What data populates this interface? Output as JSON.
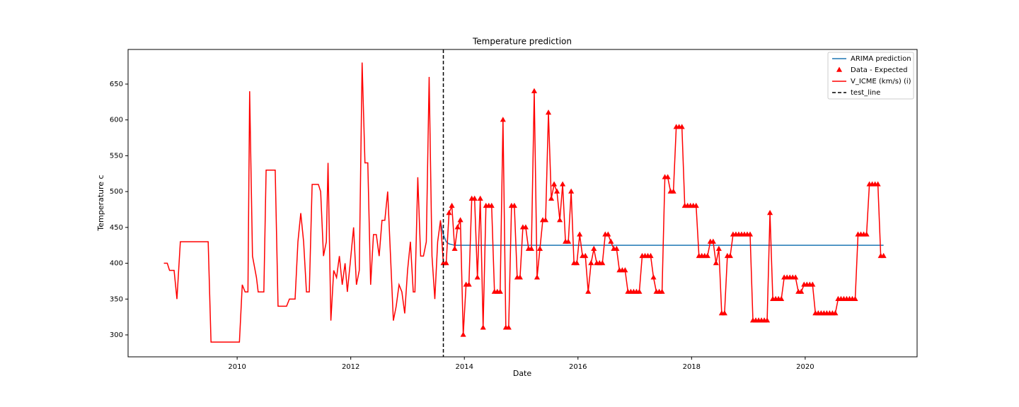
{
  "chart_data": {
    "type": "line",
    "title": "Temperature prediction",
    "x_label": "Date",
    "y_label": "Temperature c",
    "xlim": [
      2008.08,
      2021.97
    ],
    "ylim": [
      269.4,
      698.3
    ],
    "xticks": [
      2010,
      2012,
      2014,
      2016,
      2018,
      2020
    ],
    "yticks": [
      300,
      350,
      400,
      450,
      500,
      550,
      600,
      650
    ],
    "legend": "upper right",
    "series": [
      {
        "name": "ARIMA prediction",
        "kind": "line",
        "color": "#1f77b4",
        "x": [
          2013.58,
          2013.63,
          2013.68,
          2013.73,
          2013.78,
          2013.83,
          2021.38
        ],
        "values": [
          458,
          440,
          430,
          427,
          426,
          425,
          425
        ]
      },
      {
        "name": "Data - Expected",
        "kind": "scatter",
        "color": "#ff0000",
        "x": [
          2013.63,
          2013.68,
          2013.73,
          2013.78,
          2013.83,
          2013.88,
          2013.93,
          2013.98,
          2014.03,
          2014.08,
          2014.13,
          2014.18,
          2014.23,
          2014.28,
          2014.33,
          2014.38,
          2014.43,
          2014.48,
          2014.53,
          2014.58,
          2014.63,
          2014.68,
          2014.73,
          2014.78,
          2014.83,
          2014.88,
          2014.93,
          2014.98,
          2015.03,
          2015.08,
          2015.13,
          2015.18,
          2015.23,
          2015.28,
          2015.33,
          2015.38,
          2015.43,
          2015.48,
          2015.53,
          2015.58,
          2015.63,
          2015.68,
          2015.73,
          2015.78,
          2015.83,
          2015.88,
          2015.93,
          2015.98,
          2016.03,
          2016.08,
          2016.13,
          2016.18,
          2016.23,
          2016.28,
          2016.33,
          2016.38,
          2016.43,
          2016.48,
          2016.53,
          2016.58,
          2016.63,
          2016.68,
          2016.73,
          2016.78,
          2016.83,
          2016.88,
          2016.93,
          2016.98,
          2017.03,
          2017.08,
          2017.13,
          2017.18,
          2017.23,
          2017.28,
          2017.33,
          2017.38,
          2017.43,
          2017.48,
          2017.53,
          2017.58,
          2017.63,
          2017.68,
          2017.73,
          2017.78,
          2017.83,
          2017.88,
          2017.93,
          2017.98,
          2018.03,
          2018.08,
          2018.13,
          2018.18,
          2018.23,
          2018.28,
          2018.33,
          2018.38,
          2018.43,
          2018.48,
          2018.53,
          2018.58,
          2018.63,
          2018.68,
          2018.73,
          2018.78,
          2018.83,
          2018.88,
          2018.93,
          2018.98,
          2019.03,
          2019.08,
          2019.13,
          2019.18,
          2019.23,
          2019.28,
          2019.33,
          2019.38,
          2019.43,
          2019.48,
          2019.53,
          2019.58,
          2019.63,
          2019.68,
          2019.73,
          2019.78,
          2019.83,
          2019.88,
          2019.93,
          2019.98,
          2020.03,
          2020.08,
          2020.13,
          2020.18,
          2020.23,
          2020.28,
          2020.33,
          2020.38,
          2020.43,
          2020.48,
          2020.53,
          2020.58,
          2020.63,
          2020.68,
          2020.73,
          2020.78,
          2020.83,
          2020.88,
          2020.93,
          2020.98,
          2021.03,
          2021.08,
          2021.13,
          2021.18,
          2021.23,
          2021.28,
          2021.33,
          2021.38
        ],
        "values": [
          400,
          400,
          470,
          480,
          420,
          450,
          460,
          300,
          370,
          370,
          490,
          490,
          380,
          490,
          310,
          480,
          480,
          480,
          360,
          360,
          360,
          600,
          310,
          310,
          480,
          480,
          380,
          380,
          450,
          450,
          420,
          420,
          640,
          380,
          420,
          460,
          460,
          610,
          490,
          510,
          500,
          460,
          510,
          430,
          430,
          500,
          400,
          400,
          440,
          410,
          410,
          360,
          400,
          420,
          400,
          400,
          400,
          440,
          440,
          430,
          420,
          420,
          390,
          390,
          390,
          360,
          360,
          360,
          360,
          360,
          410,
          410,
          410,
          410,
          380,
          360,
          360,
          360,
          520,
          520,
          500,
          500,
          590,
          590,
          590,
          480,
          480,
          480,
          480,
          480,
          410,
          410,
          410,
          410,
          430,
          430,
          400,
          420,
          330,
          330,
          410,
          410,
          440,
          440,
          440,
          440,
          440,
          440,
          440,
          320,
          320,
          320,
          320,
          320,
          320,
          470,
          350,
          350,
          350,
          350,
          380,
          380,
          380,
          380,
          380,
          360,
          360,
          370,
          370,
          370,
          370,
          330,
          330,
          330,
          330,
          330,
          330,
          330,
          330,
          350,
          350,
          350,
          350,
          350,
          350,
          350,
          440,
          440,
          440,
          440,
          510,
          510,
          510,
          510,
          410,
          410
        ]
      },
      {
        "name": "V_ICME (km/s) (i)",
        "kind": "line",
        "color": "#ff0000",
        "x": [
          2008.71,
          2008.77,
          2008.81,
          2008.89,
          2008.94,
          2009.0,
          2009.49,
          2009.54,
          2010.04,
          2010.09,
          2010.14,
          2010.19,
          2010.22,
          2010.27,
          2010.34,
          2010.37,
          2010.47,
          2010.51,
          2010.67,
          2010.72,
          2010.87,
          2010.92,
          2011.02,
          2011.07,
          2011.12,
          2011.17,
          2011.22,
          2011.27,
          2011.32,
          2011.43,
          2011.47,
          2011.52,
          2011.57,
          2011.6,
          2011.65,
          2011.7,
          2011.75,
          2011.8,
          2011.85,
          2011.9,
          2011.94,
          2011.99,
          2012.05,
          2012.1,
          2012.15,
          2012.2,
          2012.25,
          2012.3,
          2012.35,
          2012.4,
          2012.45,
          2012.5,
          2012.55,
          2012.6,
          2012.65,
          2012.7,
          2012.75,
          2012.8,
          2012.85,
          2012.9,
          2012.95,
          2013.0,
          2013.05,
          2013.1,
          2013.13,
          2013.18,
          2013.23,
          2013.28,
          2013.33,
          2013.38,
          2013.43,
          2013.48,
          2013.53,
          2013.58,
          2013.63,
          2013.68,
          2013.73,
          2013.78,
          2013.83,
          2013.88,
          2013.93,
          2013.98,
          2014.03,
          2014.08,
          2014.13,
          2014.18,
          2014.23,
          2014.28,
          2014.33,
          2014.38,
          2014.43,
          2014.48,
          2014.53,
          2014.58,
          2014.63,
          2014.68,
          2014.73,
          2014.78,
          2014.83,
          2014.88,
          2014.93,
          2014.98,
          2015.03,
          2015.08,
          2015.13,
          2015.18,
          2015.23,
          2015.28,
          2015.33,
          2015.38,
          2015.43,
          2015.48,
          2015.53,
          2015.58,
          2015.63,
          2015.68,
          2015.73,
          2015.78,
          2015.83,
          2015.88,
          2015.93,
          2015.98,
          2016.03,
          2016.08,
          2016.13,
          2016.18,
          2016.23,
          2016.28,
          2016.33,
          2016.38,
          2016.43,
          2016.48,
          2016.53,
          2016.58,
          2016.63,
          2016.68,
          2016.73,
          2016.78,
          2016.83,
          2016.88,
          2016.93,
          2016.98,
          2017.03,
          2017.08,
          2017.13,
          2017.18,
          2017.23,
          2017.28,
          2017.33,
          2017.38,
          2017.43,
          2017.48,
          2017.53,
          2017.58,
          2017.63,
          2017.68,
          2017.73,
          2017.78,
          2017.83,
          2017.88,
          2017.93,
          2017.98,
          2018.03,
          2018.08,
          2018.13,
          2018.18,
          2018.23,
          2018.28,
          2018.33,
          2018.38,
          2018.43,
          2018.48,
          2018.53,
          2018.58,
          2018.63,
          2018.68,
          2018.73,
          2018.78,
          2018.83,
          2018.88,
          2018.93,
          2018.98,
          2019.03,
          2019.08,
          2019.13,
          2019.18,
          2019.23,
          2019.28,
          2019.33,
          2019.38,
          2019.43,
          2019.48,
          2019.53,
          2019.58,
          2019.63,
          2019.68,
          2019.73,
          2019.78,
          2019.83,
          2019.88,
          2019.93,
          2019.98,
          2020.03,
          2020.08,
          2020.13,
          2020.18,
          2020.23,
          2020.28,
          2020.33,
          2020.38,
          2020.43,
          2020.48,
          2020.53,
          2020.58,
          2020.63,
          2020.68,
          2020.73,
          2020.78,
          2020.83,
          2020.88,
          2020.93,
          2020.98,
          2021.03,
          2021.08,
          2021.13,
          2021.18,
          2021.23,
          2021.28,
          2021.33,
          2021.38
        ],
        "values": [
          400,
          400,
          390,
          390,
          350,
          430,
          430,
          290,
          290,
          370,
          360,
          360,
          640,
          410,
          380,
          360,
          360,
          530,
          530,
          340,
          340,
          350,
          350,
          430,
          470,
          430,
          360,
          360,
          510,
          510,
          500,
          410,
          430,
          540,
          320,
          390,
          380,
          410,
          370,
          400,
          360,
          400,
          450,
          370,
          390,
          680,
          540,
          540,
          370,
          440,
          440,
          410,
          460,
          460,
          500,
          410,
          320,
          340,
          370,
          360,
          330,
          390,
          430,
          360,
          360,
          520,
          410,
          410,
          430,
          660,
          410,
          350,
          430,
          460,
          400,
          400,
          470,
          480,
          420,
          450,
          460,
          300,
          370,
          370,
          490,
          490,
          380,
          490,
          310,
          480,
          480,
          480,
          360,
          360,
          360,
          600,
          310,
          310,
          480,
          480,
          380,
          380,
          450,
          450,
          420,
          420,
          640,
          380,
          420,
          460,
          460,
          610,
          490,
          510,
          500,
          460,
          510,
          430,
          430,
          500,
          400,
          400,
          440,
          410,
          410,
          360,
          400,
          420,
          400,
          400,
          400,
          440,
          440,
          430,
          420,
          420,
          390,
          390,
          390,
          360,
          360,
          360,
          360,
          360,
          410,
          410,
          410,
          410,
          380,
          360,
          360,
          360,
          520,
          520,
          500,
          500,
          590,
          590,
          590,
          480,
          480,
          480,
          480,
          480,
          410,
          410,
          410,
          410,
          430,
          430,
          400,
          420,
          330,
          330,
          410,
          410,
          440,
          440,
          440,
          440,
          440,
          440,
          440,
          320,
          320,
          320,
          320,
          320,
          320,
          470,
          350,
          350,
          350,
          350,
          380,
          380,
          380,
          380,
          380,
          360,
          360,
          370,
          370,
          370,
          370,
          330,
          330,
          330,
          330,
          330,
          330,
          330,
          330,
          350,
          350,
          350,
          350,
          350,
          350,
          350,
          440,
          440,
          440,
          440,
          510,
          510,
          510,
          510,
          410,
          410
        ]
      },
      {
        "name": "test_line",
        "kind": "vline",
        "color": "#000000",
        "x": [
          2013.63
        ]
      }
    ]
  }
}
